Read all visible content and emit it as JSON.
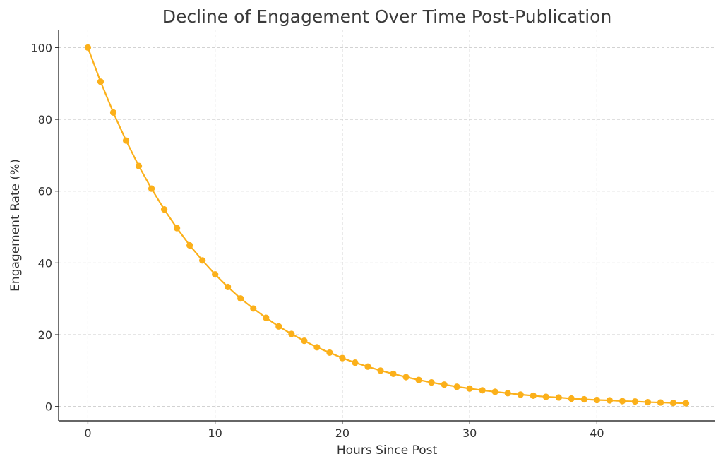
{
  "chart_data": {
    "type": "line",
    "title": "Decline of Engagement Over Time Post-Publication",
    "xlabel": "Hours Since Post",
    "ylabel": "Engagement Rate (%)",
    "xlim": [
      -2.3,
      49.3
    ],
    "ylim": [
      -4,
      105
    ],
    "xticks": [
      0,
      10,
      20,
      30,
      40
    ],
    "yticks": [
      0,
      20,
      40,
      60,
      80,
      100
    ],
    "grid": true,
    "line_color": "#FBB01A",
    "series": [
      {
        "x": [
          0,
          1,
          2,
          3,
          4,
          5,
          6,
          7,
          8,
          9,
          10,
          11,
          12,
          13,
          14,
          15,
          16,
          17,
          18,
          19,
          20,
          21,
          22,
          23,
          24,
          25,
          26,
          27,
          28,
          29,
          30,
          31,
          32,
          33,
          34,
          35,
          36,
          37,
          38,
          39,
          40,
          41,
          42,
          43,
          44,
          45,
          46,
          47
        ],
        "values": [
          100,
          90.5,
          81.9,
          74.1,
          67.0,
          60.7,
          54.9,
          49.7,
          44.9,
          40.7,
          36.8,
          33.3,
          30.1,
          27.3,
          24.7,
          22.3,
          20.2,
          18.3,
          16.5,
          15.0,
          13.5,
          12.2,
          11.1,
          10.0,
          9.1,
          8.2,
          7.4,
          6.7,
          6.1,
          5.5,
          5.0,
          4.5,
          4.1,
          3.7,
          3.3,
          3.0,
          2.7,
          2.5,
          2.2,
          2.0,
          1.8,
          1.7,
          1.5,
          1.4,
          1.2,
          1.1,
          1.0,
          0.9
        ]
      }
    ]
  }
}
